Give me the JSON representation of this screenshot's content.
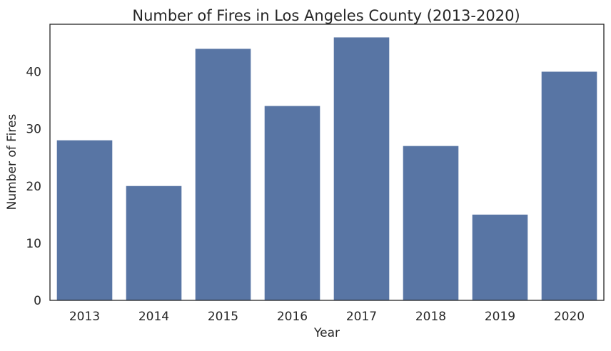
{
  "chart_data": {
    "type": "bar",
    "title": "Number of Fires in Los Angeles County (2013-2020)",
    "xlabel": "Year",
    "ylabel": "Number of Fires",
    "categories": [
      "2013",
      "2014",
      "2015",
      "2016",
      "2017",
      "2018",
      "2019",
      "2020"
    ],
    "values": [
      28,
      20,
      44,
      34,
      46,
      27,
      15,
      40
    ],
    "ylim": [
      0,
      48.3
    ],
    "yticks": [
      0,
      10,
      20,
      30,
      40
    ],
    "grid": false,
    "bar_color": "#5875a4"
  }
}
